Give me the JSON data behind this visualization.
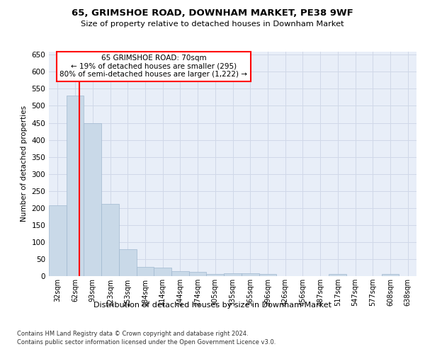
{
  "title1": "65, GRIMSHOE ROAD, DOWNHAM MARKET, PE38 9WF",
  "title2": "Size of property relative to detached houses in Downham Market",
  "xlabel": "Distribution of detached houses by size in Downham Market",
  "ylabel": "Number of detached properties",
  "categories": [
    "32sqm",
    "62sqm",
    "93sqm",
    "123sqm",
    "153sqm",
    "184sqm",
    "214sqm",
    "244sqm",
    "274sqm",
    "305sqm",
    "335sqm",
    "365sqm",
    "396sqm",
    "426sqm",
    "456sqm",
    "487sqm",
    "517sqm",
    "547sqm",
    "577sqm",
    "608sqm",
    "638sqm"
  ],
  "values": [
    208,
    530,
    450,
    212,
    78,
    27,
    25,
    15,
    12,
    7,
    8,
    9,
    6,
    0,
    0,
    0,
    6,
    0,
    0,
    6,
    0
  ],
  "bar_color": "#c9d9e8",
  "bar_edge_color": "#a0b8d0",
  "grid_color": "#d0d8e8",
  "background_color": "#e8eef8",
  "ylim": [
    0,
    660
  ],
  "yticks": [
    0,
    50,
    100,
    150,
    200,
    250,
    300,
    350,
    400,
    450,
    500,
    550,
    600,
    650
  ],
  "annotation_text_line1": "65 GRIMSHOE ROAD: 70sqm",
  "annotation_text_line2": "← 19% of detached houses are smaller (295)",
  "annotation_text_line3": "80% of semi-detached houses are larger (1,222) →",
  "footnote1": "Contains HM Land Registry data © Crown copyright and database right 2024.",
  "footnote2": "Contains public sector information licensed under the Open Government Licence v3.0."
}
